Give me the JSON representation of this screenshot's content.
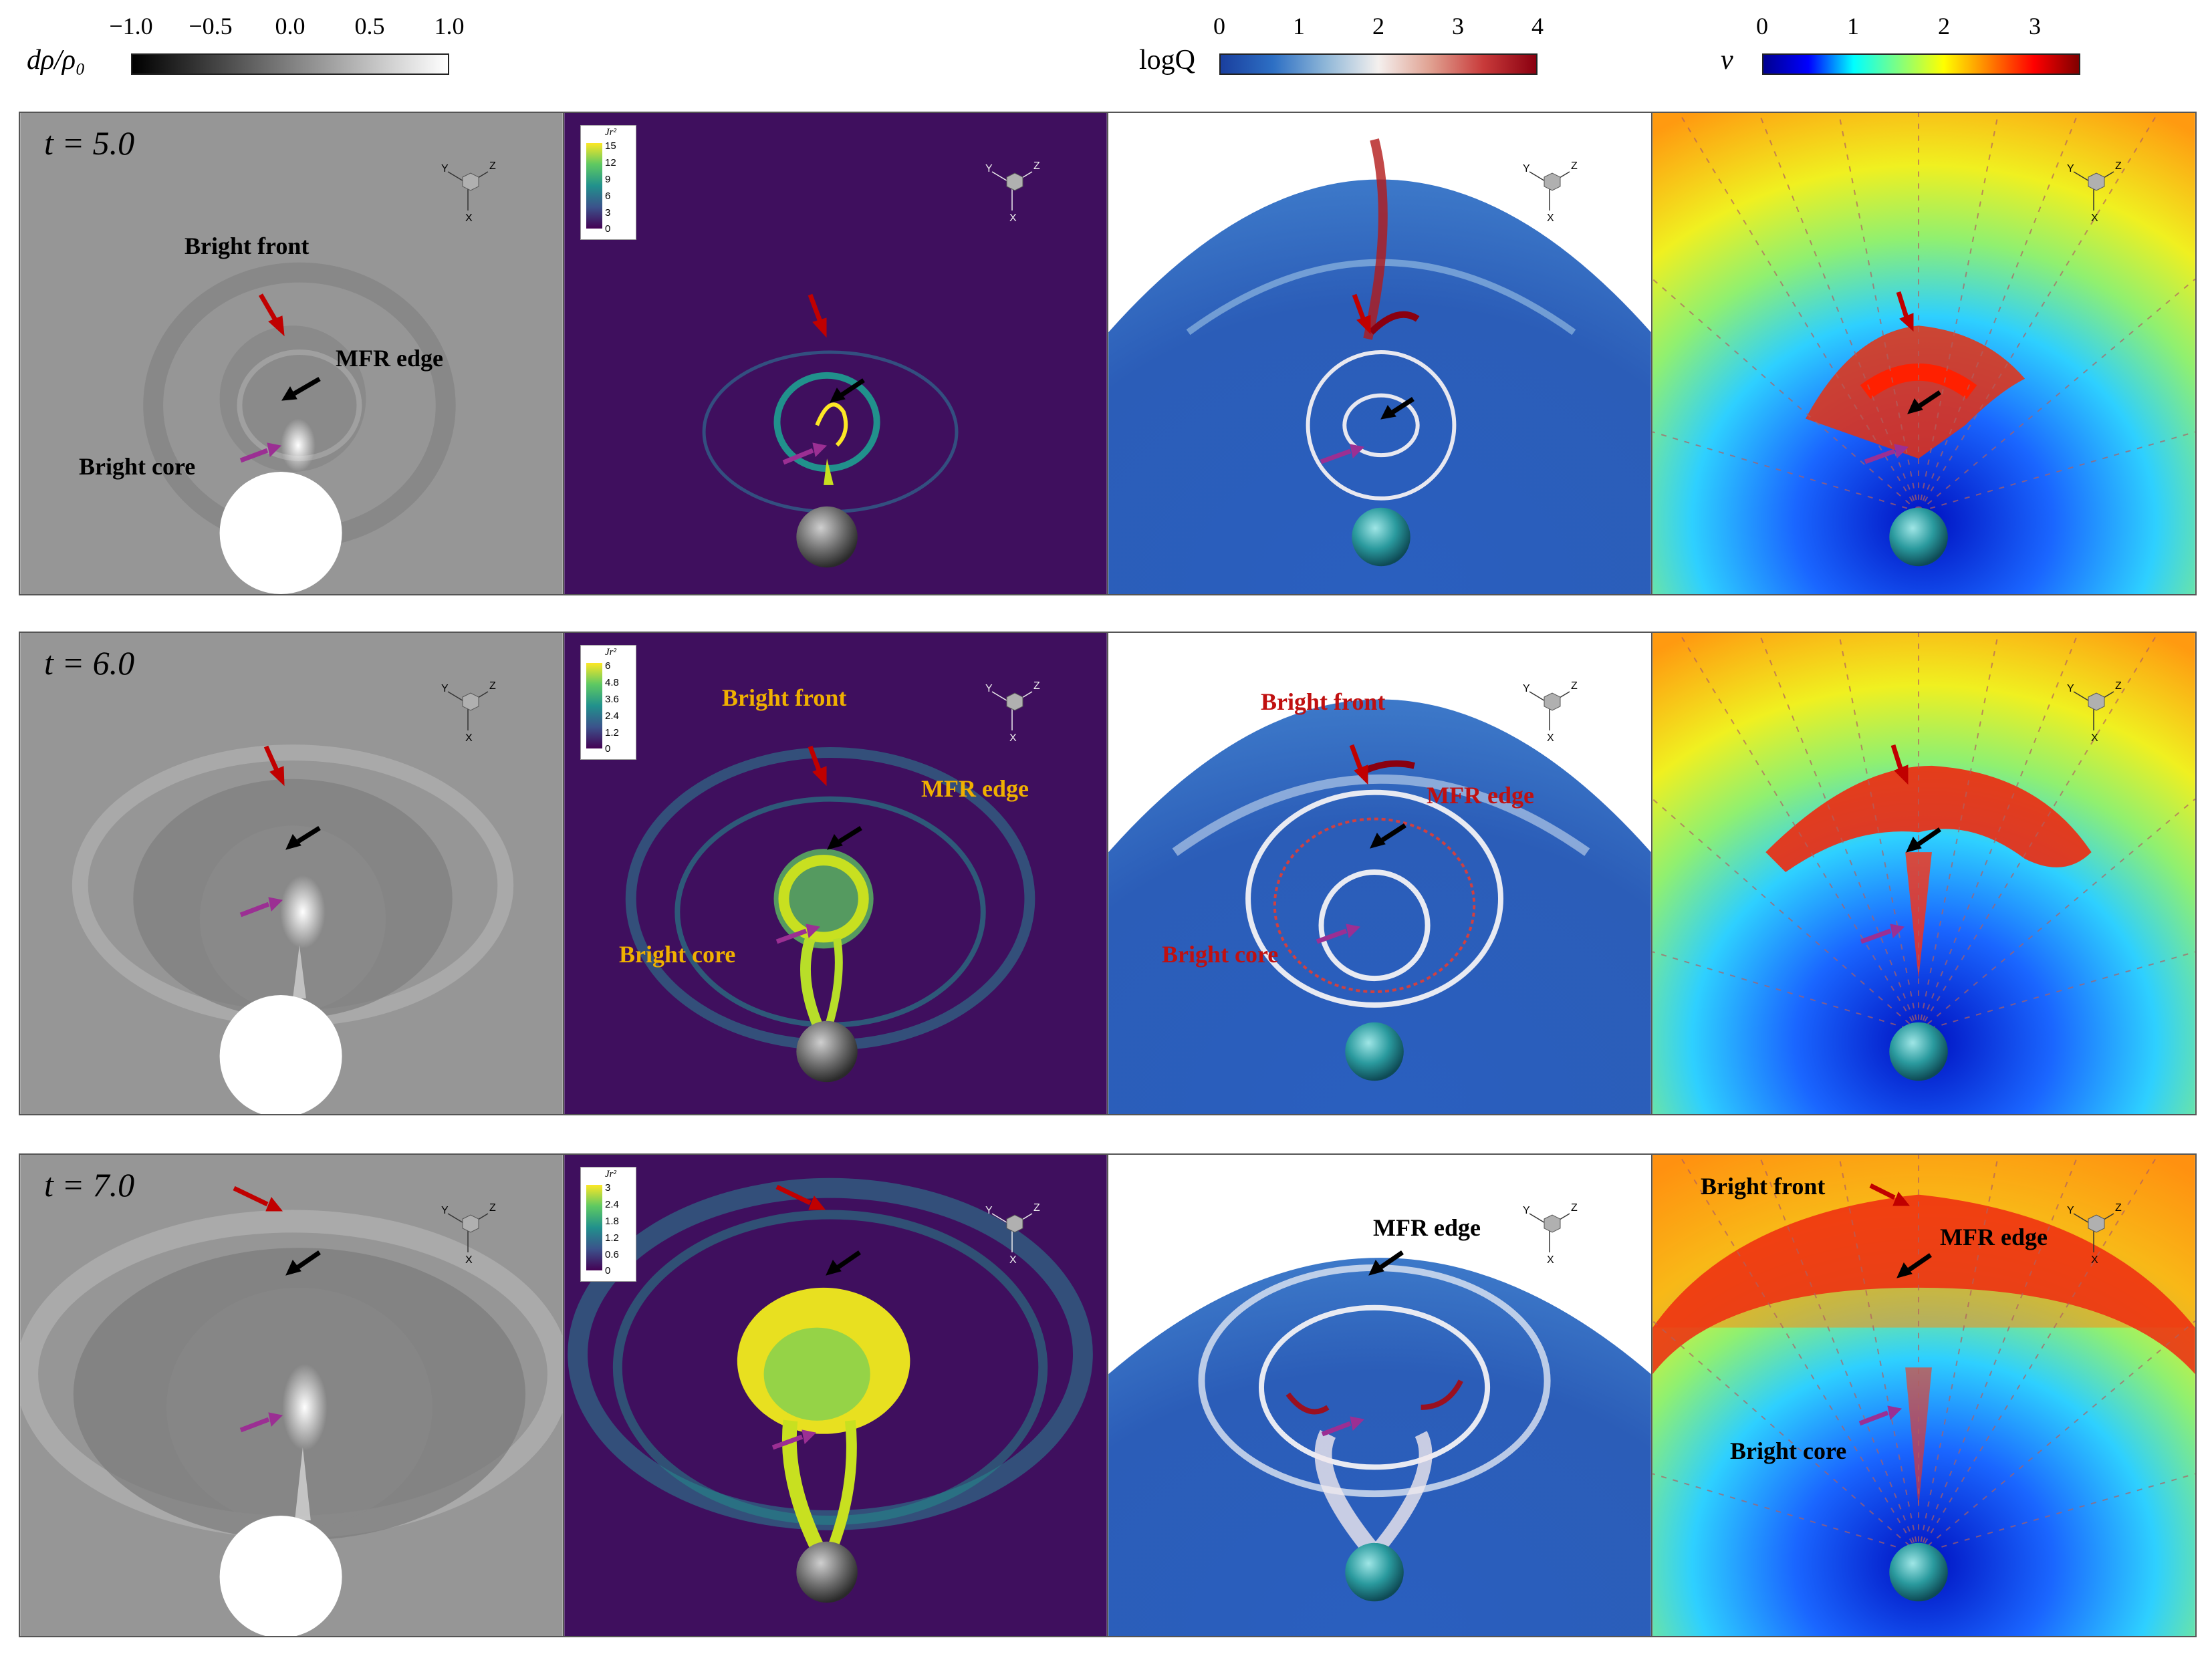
{
  "colorbars": [
    {
      "label": "dρ/ρ₀",
      "ticks": [
        "−1.0",
        "−0.5",
        "0.0",
        "0.5",
        "1.0"
      ]
    },
    {
      "label": "logQ",
      "ticks": [
        "0",
        "1",
        "2",
        "3",
        "4"
      ]
    },
    {
      "label": "v",
      "ticks": [
        "0",
        "1",
        "2",
        "3"
      ]
    }
  ],
  "rows": [
    {
      "time": "t = 5.0",
      "jscale": {
        "title": "Jr²",
        "ticks": [
          "15",
          "12",
          "9",
          "6",
          "3",
          "0"
        ]
      }
    },
    {
      "time": "t = 6.0",
      "jscale": {
        "title": "Jr²",
        "ticks": [
          "6",
          "4.8",
          "3.6",
          "2.4",
          "1.2",
          "0"
        ]
      }
    },
    {
      "time": "t = 7.0",
      "jscale": {
        "title": "Jr²",
        "ticks": [
          "3",
          "2.4",
          "1.8",
          "1.2",
          "0.6",
          "0"
        ]
      }
    }
  ],
  "annotations": {
    "bright_front": "Bright front",
    "mfr_edge": "MFR edge",
    "bright_core": "Bright core"
  },
  "axes_labels": {
    "y": "Y",
    "z": "Z",
    "x": "X"
  },
  "colors": {
    "red_arrow": "#c00000",
    "black_arrow": "#000000",
    "magenta_arrow": "#9b2f93",
    "jet_label": "#f0b000",
    "q_label": "#c01010"
  }
}
